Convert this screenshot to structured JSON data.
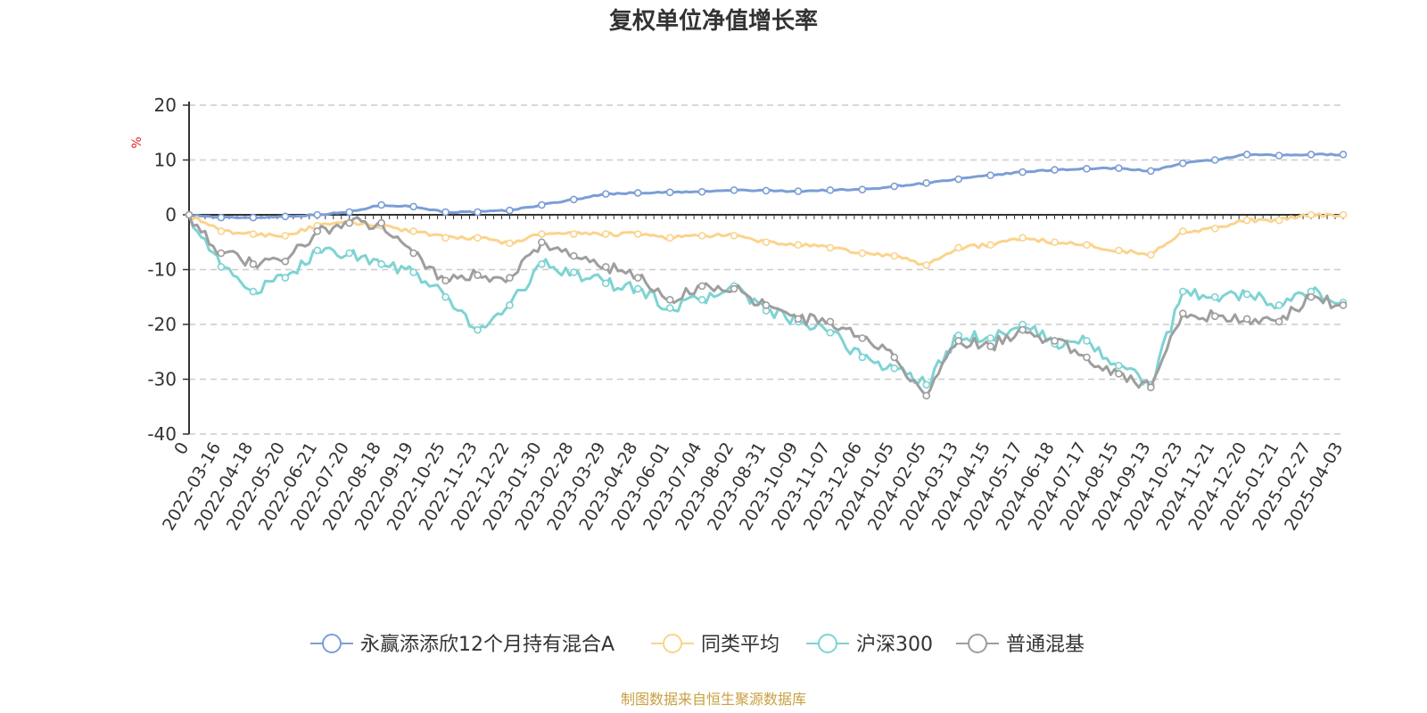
{
  "chart_data": {
    "type": "line",
    "title": "复权单位净值增长率",
    "ylabel": "%",
    "xlabel": "",
    "ylim": [
      -40,
      20
    ],
    "y_ticks": [
      20,
      10,
      0,
      -10,
      -20,
      -30,
      -40
    ],
    "y_tick_labels": [
      "20",
      "10",
      "0",
      "-10",
      "-20",
      "-30",
      "-40"
    ],
    "grid": true,
    "legend_position": "bottom",
    "categories": [
      "0",
      "2022-03-16",
      "2022-04-18",
      "2022-05-20",
      "2022-06-21",
      "2022-07-20",
      "2022-08-18",
      "2022-09-19",
      "2022-10-25",
      "2022-11-23",
      "2022-12-22",
      "2023-01-30",
      "2023-02-28",
      "2023-03-29",
      "2023-04-28",
      "2023-06-01",
      "2023-07-04",
      "2023-08-02",
      "2023-08-31",
      "2023-10-09",
      "2023-11-07",
      "2023-12-06",
      "2024-01-05",
      "2024-02-05",
      "2024-03-13",
      "2024-04-15",
      "2024-05-17",
      "2024-06-18",
      "2024-07-17",
      "2024-08-15",
      "2024-09-13",
      "2024-10-23",
      "2024-11-21",
      "2024-12-20",
      "2025-01-21",
      "2025-02-27",
      "2025-04-03"
    ],
    "series": [
      {
        "name": "永赢添添欣12个月持有混合A",
        "color": "#7b9ed6",
        "values": [
          0,
          -0.5,
          -0.5,
          -0.3,
          0,
          0.5,
          1.8,
          1.5,
          0.5,
          0.5,
          0.8,
          1.8,
          2.8,
          3.8,
          4,
          4.1,
          4.2,
          4.5,
          4.4,
          4.3,
          4.5,
          4.6,
          5.2,
          5.8,
          6.5,
          7.2,
          7.8,
          8.2,
          8.4,
          8.5,
          8,
          9.4,
          10,
          11,
          10.8,
          11,
          11
        ]
      },
      {
        "name": "同类平均",
        "color": "#fbd38d",
        "values": [
          0,
          -3,
          -3.5,
          -3.8,
          -2,
          -1.5,
          -2,
          -3,
          -4.2,
          -4.2,
          -5.2,
          -3.5,
          -3.5,
          -3.5,
          -3.5,
          -4.2,
          -3.8,
          -3.8,
          -5,
          -5.5,
          -6,
          -7,
          -7.5,
          -9.2,
          -6,
          -5.5,
          -4.2,
          -5,
          -5.5,
          -6.5,
          -7.3,
          -3,
          -2.5,
          -1,
          -1,
          0,
          0
        ]
      },
      {
        "name": "沪深300",
        "color": "#7ed3d3",
        "values": [
          0,
          -9.5,
          -14,
          -11.5,
          -6.5,
          -7,
          -9,
          -10.5,
          -15,
          -21,
          -16.5,
          -9,
          -10.5,
          -12.5,
          -13.5,
          -17,
          -15.5,
          -13,
          -17.5,
          -19.5,
          -21.5,
          -26,
          -28,
          -31,
          -22,
          -22.5,
          -20,
          -23.5,
          -23,
          -27.5,
          -31,
          -14,
          -15,
          -14.5,
          -16.5,
          -14,
          -16
        ]
      },
      {
        "name": "普通混基",
        "color": "#9e9e9e",
        "values": [
          0,
          -7,
          -9,
          -8.5,
          -3,
          -1.5,
          -1.5,
          -7,
          -12,
          -11,
          -11.5,
          -5,
          -7.5,
          -9.5,
          -11.5,
          -15.5,
          -13,
          -13.5,
          -16.5,
          -19,
          -19.5,
          -22.5,
          -26,
          -33,
          -23,
          -24,
          -21,
          -23,
          -26,
          -29,
          -31.5,
          -18,
          -18.5,
          -19,
          -19.5,
          -15,
          -16.5
        ]
      }
    ]
  },
  "footer": {
    "source_note": "制图数据来自恒生聚源数据库"
  },
  "colors": {
    "title": "#333333",
    "unit_label": "#e02020",
    "footer_note": "#c8a040",
    "grid": "#cccccc",
    "axis": "#333333"
  }
}
